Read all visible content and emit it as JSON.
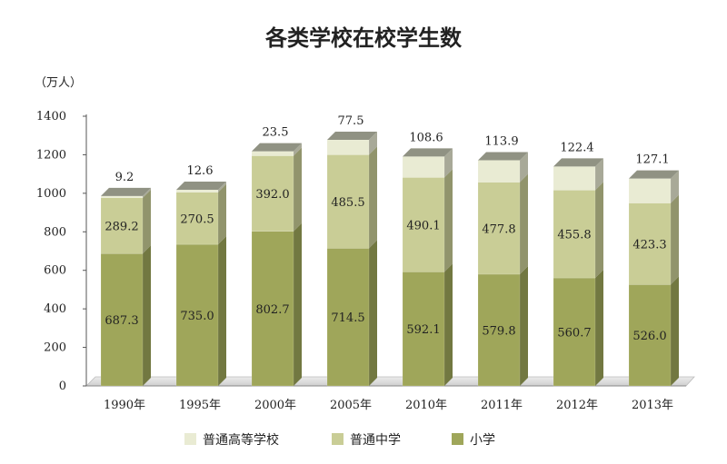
{
  "chart_data": {
    "type": "bar",
    "stacked": true,
    "title": "各类学校在校学生数",
    "ylabel": "（万人）",
    "ylim": [
      0,
      1400
    ],
    "yticks": [
      0,
      200,
      400,
      600,
      800,
      1000,
      1200,
      1400
    ],
    "categories": [
      "1990年",
      "1995年",
      "2000年",
      "2005年",
      "2010年",
      "2011年",
      "2012年",
      "2013年"
    ],
    "series": [
      {
        "name": "小学",
        "values": [
          687.3,
          735.0,
          802.7,
          714.5,
          592.1,
          579.8,
          560.7,
          526.0
        ],
        "color": "#9fa65a"
      },
      {
        "name": "普通中学",
        "values": [
          289.2,
          270.5,
          392.0,
          485.5,
          490.1,
          477.8,
          455.8,
          423.3
        ],
        "color": "#c9cd96"
      },
      {
        "name": "普通高等学校",
        "values": [
          9.2,
          12.6,
          23.5,
          77.5,
          108.6,
          113.9,
          122.4,
          127.1
        ],
        "color": "#e9ebd3"
      }
    ],
    "value_labels": [
      [
        "687.3",
        "735.0",
        "802.7",
        "714.5",
        "592.1",
        "579.8",
        "560.7",
        "526.0"
      ],
      [
        "289.2",
        "270.5",
        "392.0",
        "485.5",
        "490.1",
        "477.8",
        "455.8",
        "423.3"
      ],
      [
        "9.2",
        "12.6",
        "23.5",
        "77.5",
        "108.6",
        "113.9",
        "122.4",
        "127.1"
      ]
    ],
    "legend": {
      "position": "bottom",
      "items": [
        "普通高等学校",
        "普通中学",
        "小学"
      ]
    },
    "grid": false
  }
}
